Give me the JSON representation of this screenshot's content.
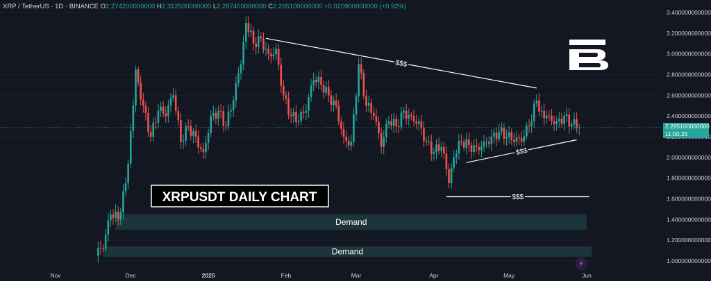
{
  "header": {
    "symbol": "XRP / TetherUS · 1D · BINANCE",
    "o_label": "O",
    "o_value": "2.274200000000",
    "h_label": "H",
    "h_value": "2.312500000000",
    "l_label": "L",
    "l_value": "2.267400000000",
    "c_label": "C",
    "c_value": "2.295100000000",
    "change": "+0.020900000000 (+0.92%)"
  },
  "price_label": {
    "value": "2.295100000000",
    "countdown": "11:00:25"
  },
  "colors": {
    "up": "#26a69a",
    "down": "#ef5350",
    "bg": "#131722",
    "text": "#d1d4dc",
    "zone": "#1e3a40"
  },
  "chart_data": {
    "type": "candlestick",
    "title": "XRPUSDT DAILY CHART",
    "x_ticks": [
      "Nov",
      "Dec",
      "2025",
      "Feb",
      "Mar",
      "Apr",
      "May",
      "Jun"
    ],
    "y_ticks": [
      "3.400000000000",
      "3.200000000000",
      "3.000000000000",
      "2.800000000000",
      "2.600000000000",
      "2.400000000000",
      "2.200000000000",
      "2.000000000000",
      "1.800000000000",
      "1.600000000000",
      "1.400000000000",
      "1.200000000000",
      "1.000000000000"
    ],
    "ylim": [
      0.9,
      3.45
    ],
    "series_close": [
      [
        "2024-11-17",
        1.05
      ],
      [
        "2024-11-20",
        1.12
      ],
      [
        "2024-11-23",
        1.45
      ],
      [
        "2024-11-26",
        1.4
      ],
      [
        "2024-11-29",
        1.75
      ],
      [
        "2024-12-02",
        2.5
      ],
      [
        "2024-12-03",
        2.85
      ],
      [
        "2024-12-06",
        2.5
      ],
      [
        "2024-12-09",
        2.2
      ],
      [
        "2024-12-12",
        2.45
      ],
      [
        "2024-12-15",
        2.4
      ],
      [
        "2024-12-18",
        2.6
      ],
      [
        "2024-12-21",
        2.15
      ],
      [
        "2024-12-24",
        2.3
      ],
      [
        "2024-12-27",
        2.2
      ],
      [
        "2024-12-30",
        2.05
      ],
      [
        "2025-01-02",
        2.4
      ],
      [
        "2025-01-05",
        2.45
      ],
      [
        "2025-01-08",
        2.3
      ],
      [
        "2025-01-11",
        2.55
      ],
      [
        "2025-01-14",
        2.9
      ],
      [
        "2025-01-16",
        3.3
      ],
      [
        "2025-01-19",
        3.1
      ],
      [
        "2025-01-22",
        3.15
      ],
      [
        "2025-01-25",
        3.0
      ],
      [
        "2025-01-28",
        3.05
      ],
      [
        "2025-01-31",
        2.6
      ],
      [
        "2025-02-03",
        2.4
      ],
      [
        "2025-02-06",
        2.35
      ],
      [
        "2025-02-09",
        2.45
      ],
      [
        "2025-02-12",
        2.75
      ],
      [
        "2025-02-15",
        2.7
      ],
      [
        "2025-02-18",
        2.6
      ],
      [
        "2025-02-21",
        2.5
      ],
      [
        "2025-02-24",
        2.2
      ],
      [
        "2025-02-27",
        2.15
      ],
      [
        "2025-03-02",
        2.9
      ],
      [
        "2025-03-05",
        2.5
      ],
      [
        "2025-03-08",
        2.4
      ],
      [
        "2025-03-11",
        2.1
      ],
      [
        "2025-03-14",
        2.35
      ],
      [
        "2025-03-17",
        2.3
      ],
      [
        "2025-03-20",
        2.45
      ],
      [
        "2025-03-23",
        2.4
      ],
      [
        "2025-03-26",
        2.35
      ],
      [
        "2025-03-29",
        2.15
      ],
      [
        "2025-04-01",
        2.05
      ],
      [
        "2025-04-04",
        2.1
      ],
      [
        "2025-04-07",
        1.75
      ],
      [
        "2025-04-09",
        2.0
      ],
      [
        "2025-04-12",
        2.15
      ],
      [
        "2025-04-15",
        2.12
      ],
      [
        "2025-04-18",
        2.1
      ],
      [
        "2025-04-21",
        2.15
      ],
      [
        "2025-04-24",
        2.2
      ],
      [
        "2025-04-27",
        2.25
      ],
      [
        "2025-04-30",
        2.2
      ],
      [
        "2025-05-03",
        2.15
      ],
      [
        "2025-05-06",
        2.15
      ],
      [
        "2025-05-09",
        2.3
      ],
      [
        "2025-05-12",
        2.55
      ],
      [
        "2025-05-14",
        2.45
      ],
      [
        "2025-05-17",
        2.4
      ],
      [
        "2025-05-20",
        2.35
      ],
      [
        "2025-05-23",
        2.4
      ],
      [
        "2025-05-26",
        2.32
      ],
      [
        "2025-05-29",
        2.29
      ]
    ],
    "trendlines": [
      {
        "label": "$$$",
        "from": [
          "2025-01-24",
          3.15
        ],
        "to": [
          "2025-05-12",
          2.67
        ]
      },
      {
        "label": "$$$",
        "from": [
          "2025-04-14",
          1.95
        ],
        "to": [
          "2025-05-28",
          2.17
        ]
      },
      {
        "label": "$$$",
        "from": [
          "2025-04-06",
          1.62
        ],
        "to": [
          "2025-06-02",
          1.62
        ]
      }
    ],
    "zones": [
      {
        "label": "Demand",
        "x_from": "2024-11-25",
        "x_to": "2025-06-01",
        "y_from": 1.3,
        "y_to": 1.45
      },
      {
        "label": "Demand",
        "x_from": "2024-11-20",
        "x_to": "2025-06-03",
        "y_from": 1.04,
        "y_to": 1.14
      }
    ]
  }
}
